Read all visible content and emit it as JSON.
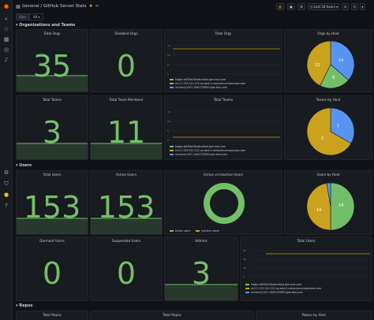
{
  "header": {
    "breadcrumb": "General / GitHub Server Stats",
    "time_range": "Last 24 hours",
    "var_label": "User",
    "var_value": "All"
  },
  "rows": {
    "orgs": "Organizations and Teams",
    "users": "Users",
    "repos": "Repos"
  },
  "panels": {
    "total_orgs": {
      "title": "Total Orgs",
      "value": "35"
    },
    "disabled_orgs": {
      "title": "Disabled Orgs",
      "value": "0"
    },
    "total_orgs_chart": {
      "title": "Total Orgs"
    },
    "orgs_by_host": {
      "title": "Orgs by Host"
    },
    "total_teams": {
      "title": "Total Teams",
      "value": "3"
    },
    "total_team_members": {
      "title": "Total Team Members",
      "value": "11"
    },
    "total_teams_chart": {
      "title": "Total Teams"
    },
    "teams_by_host": {
      "title": "Teams by Host"
    },
    "total_users": {
      "title": "Total Users",
      "value": "153"
    },
    "active_users": {
      "title": "Active Users",
      "value": "153"
    },
    "active_vs_inactive": {
      "title": "Active vs Inactive Users"
    },
    "users_by_host": {
      "title": "Users by Host"
    },
    "dormant_users": {
      "title": "Dormant Users",
      "value": "0"
    },
    "suspended_users": {
      "title": "Suspended Users",
      "value": "0"
    },
    "admins": {
      "title": "Admins",
      "value": "3"
    },
    "total_users_chart": {
      "title": "Total Users"
    },
    "total_repos": {
      "title": "Total Repos"
    },
    "total_repos_2": {
      "title": "Total Repos"
    },
    "repos_by_host": {
      "title": "Repos by Host"
    }
  },
  "legends": {
    "hosts": [
      "tstgbz-b650be3feabcd0ad.ghe-test.com",
      "ec2-3-133-241-222.us-east-2.compute.amazonaws.com",
      "mchenry1207-1640725650.ghe-test.com"
    ],
    "active_inactive": [
      "active users",
      "inactive users"
    ]
  },
  "axis": {
    "orgs_y": [
      "15",
      "10",
      "5",
      "0"
    ],
    "teams_y": [
      "15",
      "10",
      "5",
      "0"
    ],
    "users_y": [
      "60",
      "40",
      "20",
      "0"
    ]
  },
  "pie_labels": {
    "orgs": [
      "12",
      "14",
      "9"
    ],
    "teams": [
      "1",
      "2"
    ],
    "users": [
      "14",
      "14"
    ]
  },
  "colors": {
    "green": "#73bf69",
    "yellow": "#caa21d",
    "blue": "#5794f2",
    "bg": "#111217",
    "panel": "#181b1f"
  }
}
